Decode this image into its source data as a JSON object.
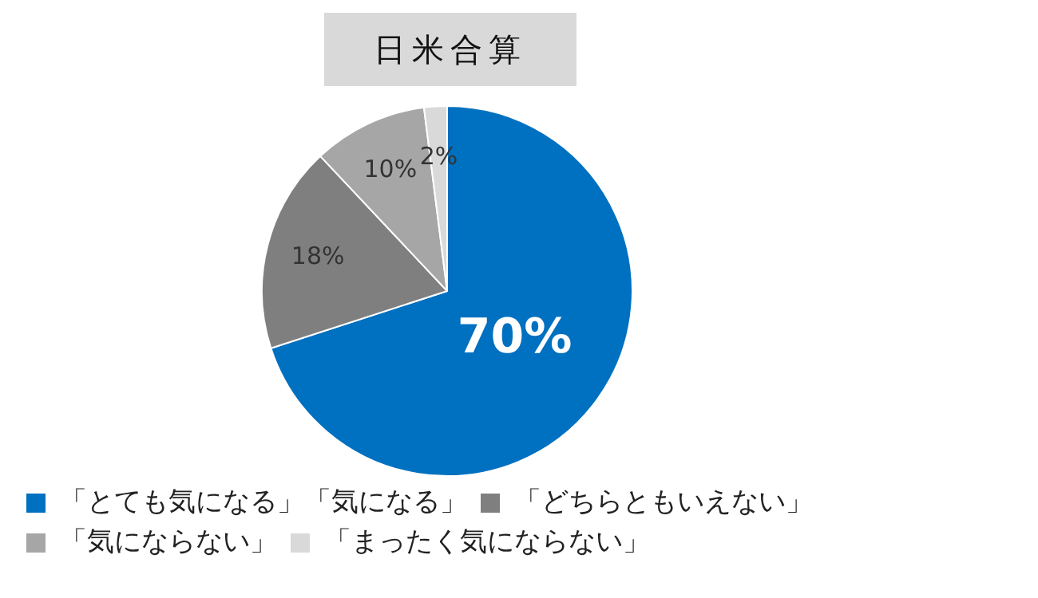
{
  "chart_data": {
    "type": "pie",
    "title": "日米合算",
    "categories": [
      "「とても気になる」「気になる」",
      "「どちらともいえない」",
      "「気にならない」",
      "「まったく気にならない」"
    ],
    "values": [
      70,
      18,
      10,
      2
    ],
    "colors": [
      "#0070c0",
      "#7f7f7f",
      "#a6a6a6",
      "#d9d9d9"
    ],
    "value_labels": [
      "70%",
      "18%",
      "10%",
      "2%"
    ],
    "legend": "bottom"
  }
}
